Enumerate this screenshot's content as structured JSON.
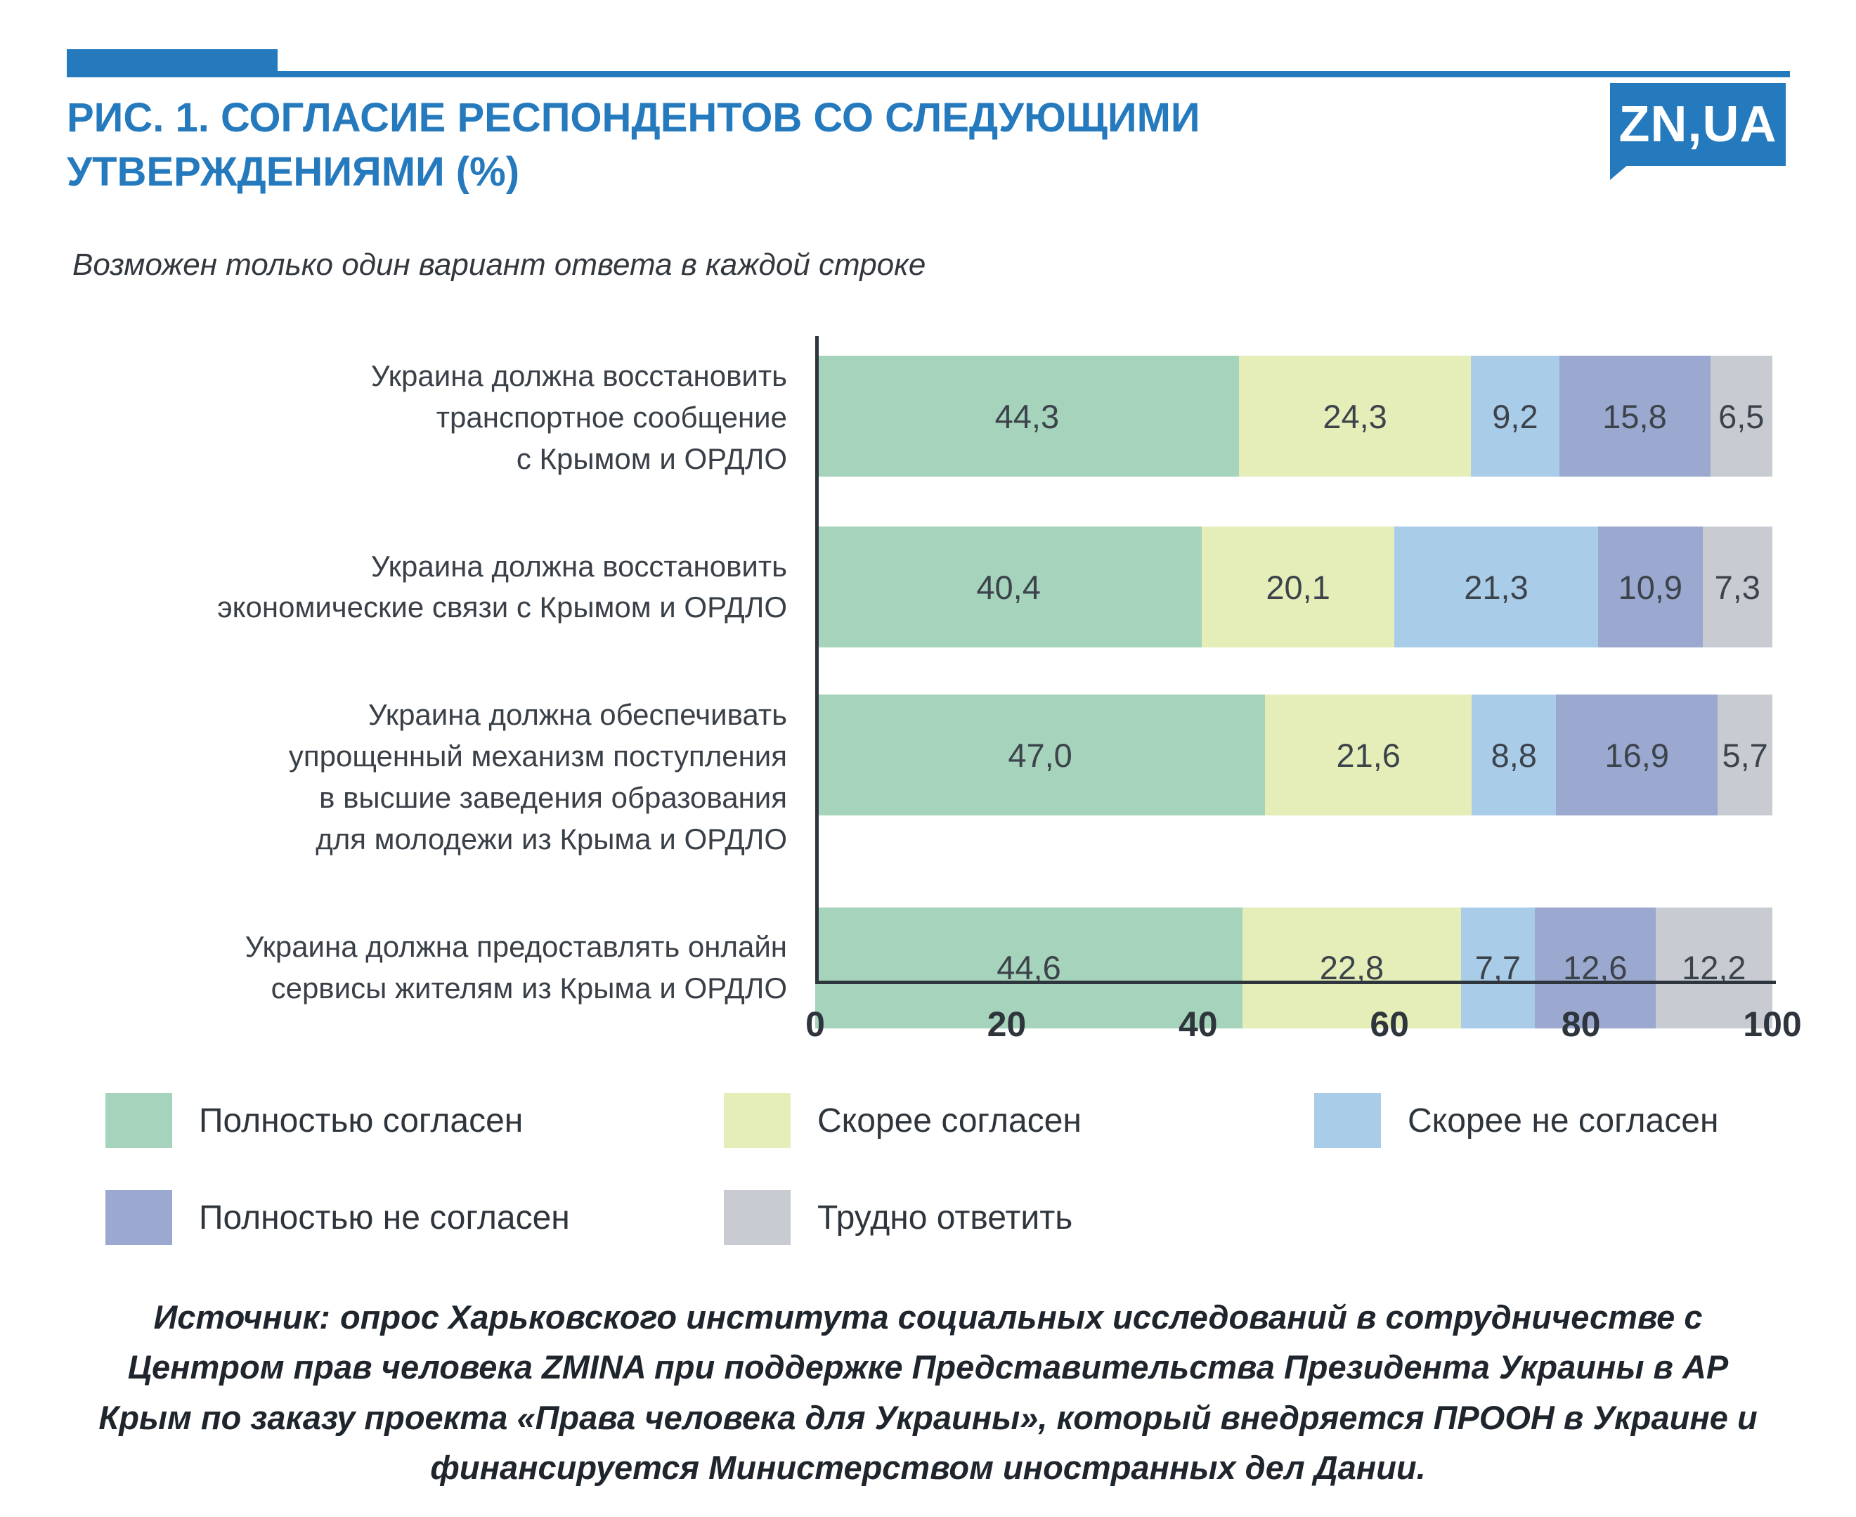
{
  "colors": {
    "accent": "#2579bd",
    "axis": "#2f353c",
    "value_text": "#3c434b"
  },
  "header": {
    "title": "РИС. 1. СОГЛАСИЕ РЕСПОНДЕНТОВ СО СЛЕДУЮЩИМИ\nУТВЕРЖДЕНИЯМИ (%)",
    "subtitle": "Возможен только один вариант ответа в каждой строке",
    "logo_text": "ZN,UA"
  },
  "chart_data": {
    "type": "bar",
    "orientation": "horizontal",
    "stacked": true,
    "title": "РИС. 1. Согласие респондентов со следующими утверждениями (%)",
    "note": "Возможен только один вариант ответа в каждой строке",
    "xlim": [
      0,
      100
    ],
    "x_ticks": [
      "0",
      "20",
      "40",
      "60",
      "80",
      "100"
    ],
    "grid": false,
    "legend_position": "bottom",
    "categories": [
      "Украина должна восстановить\nтранспортное сообщение\nс Крымом и ОРДЛО",
      "Украина должна восстановить\nэкономические связи с Крымом и ОРДЛО",
      "Украина должна обеспечивать\nупрощенный механизм поступления\nв высшие заведения образования\nдля молодежи из Крыма и ОРДЛО",
      "Украина должна предоставлять онлайн\nсервисы жителям из Крыма и ОРДЛО"
    ],
    "series": [
      {
        "name": "Полностью согласен",
        "color": "#a6d3bb",
        "values": [
          44.3,
          40.4,
          47.0,
          44.6
        ],
        "labels": [
          "44,3",
          "40,4",
          "47,0",
          "44,6"
        ]
      },
      {
        "name": "Скорее согласен",
        "color": "#e5eeb9",
        "values": [
          24.3,
          20.1,
          21.6,
          22.8
        ],
        "labels": [
          "24,3",
          "20,1",
          "21,6",
          "22,8"
        ]
      },
      {
        "name": "Скорее не согласен",
        "color": "#a9cce9",
        "values": [
          9.2,
          21.3,
          8.8,
          7.7
        ],
        "labels": [
          "9,2",
          "21,3",
          "8,8",
          "7,7"
        ]
      },
      {
        "name": "Полностью не согласен",
        "color": "#9ba8cf",
        "values": [
          15.8,
          10.9,
          16.9,
          12.6
        ],
        "labels": [
          "15,8",
          "10,9",
          "16,9",
          "12,6"
        ]
      },
      {
        "name": "Трудно ответить",
        "color": "#c8ccd2",
        "values": [
          6.5,
          7.3,
          5.7,
          12.2
        ],
        "labels": [
          "6,5",
          "7,3",
          "5,7",
          "12,2"
        ]
      }
    ]
  },
  "source": {
    "label": "Источник:",
    "text": "опрос Харьковского института социальных исследований в сотрудничестве с Центром прав человека ZMINA при поддержке Представительства Президента Украины в АР Крым по заказу проекта «Права человека для Украины», который внедряется ПРООН в Украине и финансируется Министерством иностранных дел Дании."
  }
}
